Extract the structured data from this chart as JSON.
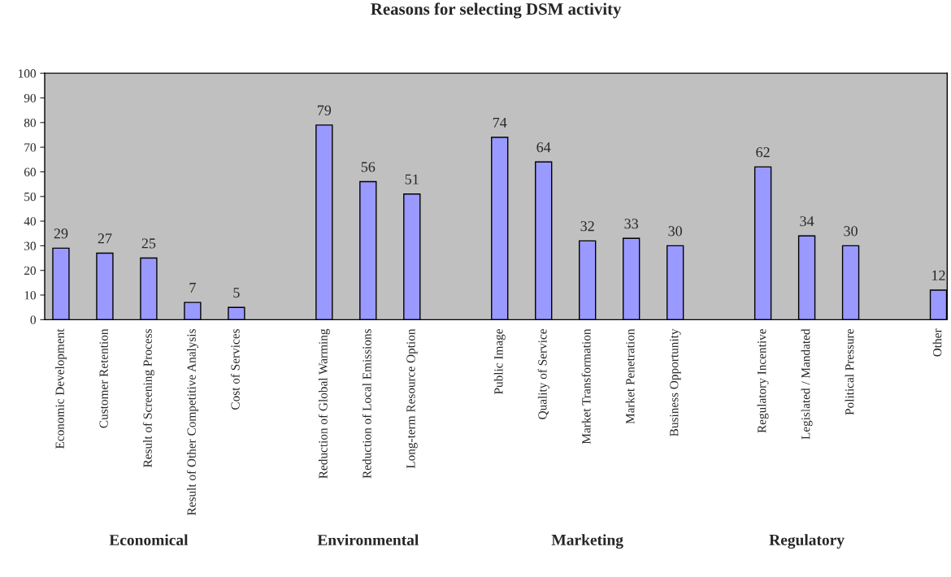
{
  "chart_data": {
    "type": "bar",
    "title": "Reasons for selecting DSM activity",
    "categories": [
      "Economic Development",
      "Customer Retention",
      "Result of Screening Process",
      "Result of Other Competitive Analysis",
      "Cost of Services",
      null,
      "Reduction of Global Warming",
      "Reduction of Local Emissions",
      "Long-term Resource Option",
      null,
      "Public Image",
      "Quality of Service",
      "Market Transformation",
      "Market Penetration",
      "Business Opportunity",
      null,
      "Regulatory Incentive",
      "Legislated / Mandated",
      "Political Pressure",
      null,
      "Other"
    ],
    "values": [
      29,
      27,
      25,
      7,
      5,
      null,
      79,
      56,
      51,
      null,
      74,
      64,
      32,
      33,
      30,
      null,
      62,
      34,
      30,
      null,
      12
    ],
    "color": "#9999ff",
    "ylim": [
      0,
      100
    ],
    "yticks": [
      0,
      10,
      20,
      30,
      40,
      50,
      60,
      70,
      80,
      90,
      100
    ],
    "grid": false,
    "data_labels": true,
    "annotations": [
      "Economical",
      "Environmental",
      "Marketing",
      "Regulatory"
    ]
  }
}
